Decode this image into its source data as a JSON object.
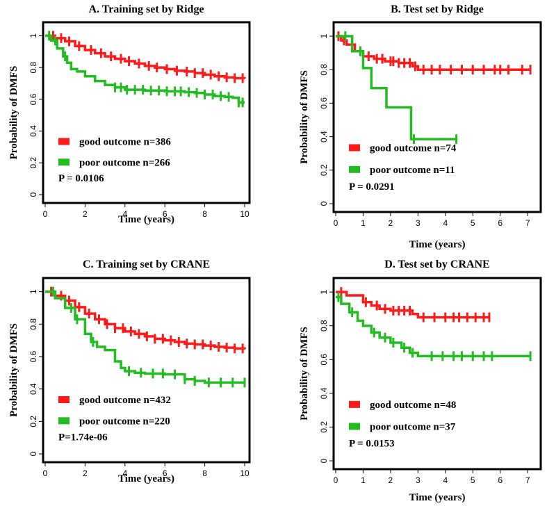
{
  "chart_data": [
    {
      "type": "line",
      "panel": "A",
      "title": "A. Training set by Ridge",
      "xlabel": "Time (years)",
      "ylabel": "Probability of DMFS",
      "xlim": [
        0,
        10
      ],
      "ylim": [
        0,
        1.05
      ],
      "xticks": [
        0,
        2,
        4,
        6,
        8,
        10
      ],
      "yticks": [
        0,
        0.2,
        0.4,
        0.6,
        0.8,
        1
      ],
      "ytick_labels": [
        "0",
        "0.2",
        "0.4",
        "0.6",
        "0.8",
        "1"
      ],
      "legend": {
        "position": "bottom-left"
      },
      "p_value": "P = 0.0106",
      "series": [
        {
          "name": "good outcome n=386",
          "color": "#ff1a1a",
          "x": [
            0,
            0.5,
            1,
            1.5,
            2,
            2.5,
            3,
            3.5,
            4,
            4.5,
            5,
            5.5,
            6,
            6.5,
            7,
            7.5,
            8,
            8.5,
            9,
            9.5,
            10
          ],
          "y": [
            1,
            0.985,
            0.965,
            0.935,
            0.91,
            0.89,
            0.87,
            0.855,
            0.84,
            0.825,
            0.81,
            0.8,
            0.79,
            0.78,
            0.775,
            0.765,
            0.755,
            0.745,
            0.738,
            0.733,
            0.73
          ],
          "censor_x": [
            0.4,
            0.8,
            1.2,
            1.7,
            2.3,
            2.8,
            3.3,
            3.8,
            4.2,
            4.7,
            5.2,
            5.6,
            6.1,
            6.6,
            7.1,
            7.5,
            7.9,
            8.3,
            8.7,
            9.1,
            9.5,
            9.9
          ]
        },
        {
          "name": "poor outcome n=266",
          "color": "#22bb22",
          "x": [
            0,
            0.3,
            0.6,
            0.9,
            1.1,
            1.3,
            1.6,
            2,
            2.5,
            3,
            3.5,
            4,
            5,
            6,
            7,
            7.5,
            8,
            8.5,
            9,
            9.4,
            9.7,
            10
          ],
          "y": [
            1,
            0.97,
            0.92,
            0.87,
            0.83,
            0.79,
            0.775,
            0.745,
            0.715,
            0.69,
            0.675,
            0.66,
            0.655,
            0.65,
            0.645,
            0.64,
            0.63,
            0.62,
            0.615,
            0.61,
            0.58,
            0.58
          ],
          "censor_x": [
            0.2,
            0.5,
            1.0,
            3.5,
            3.8,
            4.1,
            4.5,
            4.9,
            5.3,
            5.7,
            6.1,
            6.5,
            6.8,
            7.2,
            7.6,
            8.0,
            8.4,
            8.8,
            9.2,
            9.7,
            9.9
          ]
        }
      ]
    },
    {
      "type": "line",
      "panel": "B",
      "title": "B. Test set by Ridge",
      "xlabel": "Time (years)",
      "ylabel": "Probability of DMFS",
      "xlim": [
        0,
        7.3
      ],
      "ylim": [
        0,
        1.05
      ],
      "xticks": [
        0,
        1,
        2,
        3,
        4,
        5,
        6,
        7
      ],
      "yticks": [
        0,
        0.2,
        0.4,
        0.6,
        0.8,
        1
      ],
      "ytick_labels": [
        "0",
        "0.2",
        "0.4",
        "0.6",
        "0.8",
        "1"
      ],
      "legend": {
        "position": "bottom-left"
      },
      "p_value": "P = 0.0291",
      "series": [
        {
          "name": "good outcome n=74",
          "color": "#ff1a1a",
          "x": [
            0,
            0.2,
            0.4,
            0.7,
            1.0,
            1.4,
            1.8,
            2.3,
            2.8,
            3.0,
            7.1
          ],
          "y": [
            1,
            0.975,
            0.95,
            0.91,
            0.88,
            0.865,
            0.85,
            0.84,
            0.82,
            0.8,
            0.8
          ],
          "censor_x": [
            0.1,
            0.3,
            0.6,
            0.9,
            1.2,
            1.5,
            1.7,
            2.0,
            2.1,
            2.3,
            2.5,
            2.7,
            2.9,
            3.2,
            3.5,
            3.8,
            4.2,
            4.6,
            5.0,
            5.4,
            5.8,
            6.0,
            6.3,
            6.8,
            7.1
          ]
        },
        {
          "name": "poor outcome n=11",
          "color": "#22bb22",
          "x": [
            0,
            0.6,
            1.0,
            1.3,
            1.85,
            2.75,
            4.4
          ],
          "y": [
            1,
            0.91,
            0.81,
            0.69,
            0.575,
            0.385,
            0.385
          ],
          "censor_x": [
            0.35,
            0.9,
            2.85,
            4.4
          ]
        }
      ]
    },
    {
      "type": "line",
      "panel": "C",
      "title": "C. Training set by CRANE",
      "xlabel": "Time (years)",
      "ylabel": "Probability of DMFS",
      "xlim": [
        0,
        10
      ],
      "ylim": [
        0,
        1.05
      ],
      "xticks": [
        0,
        2,
        4,
        6,
        8,
        10
      ],
      "yticks": [
        0,
        0.2,
        0.4,
        0.6,
        0.8,
        1
      ],
      "ytick_labels": [
        "0",
        "0.2",
        "0.4",
        "0.6",
        "0.8",
        "1"
      ],
      "legend": {
        "position": "bottom-left"
      },
      "p_value": "P=1.74e-06",
      "series": [
        {
          "name": "good outcome n=432",
          "color": "#ff1a1a",
          "x": [
            0,
            0.5,
            1,
            1.5,
            2,
            2.5,
            3,
            3.5,
            4,
            4.5,
            5,
            5.5,
            6,
            6.5,
            7,
            7.5,
            8,
            8.5,
            9,
            9.5,
            10
          ],
          "y": [
            1,
            0.975,
            0.945,
            0.905,
            0.865,
            0.83,
            0.8,
            0.775,
            0.755,
            0.74,
            0.725,
            0.71,
            0.7,
            0.69,
            0.68,
            0.675,
            0.668,
            0.66,
            0.655,
            0.65,
            0.645
          ],
          "censor_x": [
            0.3,
            0.8,
            1.2,
            1.7,
            2.2,
            2.7,
            3.1,
            3.5,
            3.9,
            4.3,
            4.7,
            5.1,
            5.5,
            5.9,
            6.3,
            6.7,
            7.1,
            7.5,
            7.9,
            8.3,
            8.7,
            9.1,
            9.5,
            9.9
          ]
        },
        {
          "name": "poor outcome n=220",
          "color": "#22bb22",
          "x": [
            0,
            0.5,
            1,
            1.5,
            2,
            2.3,
            2.6,
            3,
            3.5,
            3.8,
            4,
            4.5,
            5,
            6,
            7,
            7.5,
            8,
            10
          ],
          "y": [
            1,
            0.96,
            0.9,
            0.83,
            0.74,
            0.69,
            0.66,
            0.64,
            0.57,
            0.53,
            0.51,
            0.5,
            0.495,
            0.49,
            0.46,
            0.45,
            0.44,
            0.44
          ],
          "censor_x": [
            0.4,
            1.3,
            1.6,
            2.4,
            4.2,
            4.8,
            5.4,
            5.9,
            6.5,
            7.0,
            7.5,
            8.2,
            8.8,
            9.4,
            10.0
          ]
        }
      ]
    },
    {
      "type": "line",
      "panel": "D",
      "title": "D. Test set by CRANE",
      "xlabel": "Time (years)",
      "ylabel": "Probability of DMFS",
      "xlim": [
        0,
        7.3
      ],
      "ylim": [
        0,
        1.05
      ],
      "xticks": [
        0,
        1,
        2,
        3,
        4,
        5,
        6,
        7
      ],
      "yticks": [
        0,
        0.2,
        0.4,
        0.6,
        0.8,
        1
      ],
      "ytick_labels": [
        "0",
        "0.2",
        "0.4",
        "0.6",
        "0.8",
        "1"
      ],
      "legend": {
        "position": "bottom-left"
      },
      "p_value": "P = 0.0153",
      "series": [
        {
          "name": "good outcome n=48",
          "color": "#ff1a1a",
          "x": [
            0,
            0.4,
            1.0,
            1.3,
            1.6,
            2.0,
            2.8,
            3.0,
            5.6
          ],
          "y": [
            1,
            0.98,
            0.94,
            0.92,
            0.9,
            0.89,
            0.87,
            0.85,
            0.85
          ],
          "censor_x": [
            0.2,
            1.1,
            1.5,
            1.8,
            2.1,
            2.3,
            2.5,
            2.7,
            3.2,
            3.6,
            4.0,
            4.3,
            4.5,
            4.8,
            5.1,
            5.4,
            5.6
          ]
        },
        {
          "name": "poor outcome n=37",
          "color": "#22bb22",
          "x": [
            0,
            0.2,
            0.5,
            0.8,
            1.0,
            1.3,
            1.6,
            2.0,
            2.4,
            2.7,
            3.0,
            7.1
          ],
          "y": [
            0.97,
            0.93,
            0.88,
            0.83,
            0.8,
            0.76,
            0.73,
            0.7,
            0.67,
            0.64,
            0.62,
            0.62
          ],
          "censor_x": [
            0.1,
            0.6,
            1.4,
            1.8,
            2.1,
            2.5,
            2.8,
            3.5,
            3.9,
            4.3,
            4.6,
            5.0,
            5.4,
            5.7,
            7.1
          ]
        }
      ]
    }
  ]
}
